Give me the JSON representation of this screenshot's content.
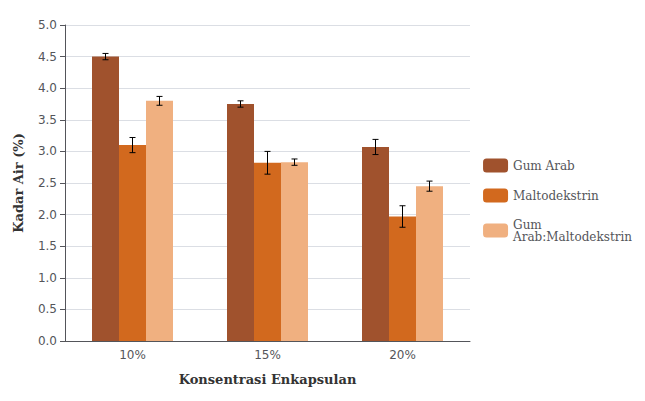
{
  "chart_data": {
    "type": "bar",
    "categories": [
      "10%",
      "15%",
      "20%"
    ],
    "series": [
      {
        "name": "Gum Arab",
        "color": "#a0522d",
        "values": [
          4.5,
          3.75,
          3.07
        ],
        "errors": [
          0.05,
          0.05,
          0.12
        ]
      },
      {
        "name": "Maltodekstrin",
        "color": "#d2691e",
        "values": [
          3.1,
          2.82,
          1.97
        ],
        "errors": [
          0.12,
          0.18,
          0.17
        ]
      },
      {
        "name": "Gum\nArab:Maltodekstrin",
        "color": "#f0b080",
        "values": [
          3.8,
          2.83,
          2.45
        ],
        "errors": [
          0.07,
          0.05,
          0.08
        ]
      }
    ],
    "xlabel": "Konsentrasi Enkapsulan",
    "ylabel": "Kadar Air (%)",
    "ylim": [
      0.0,
      5.0
    ],
    "yticks": [
      {
        "value": 0,
        "label": "0.0"
      },
      0.5,
      {
        "value": 1,
        "label": "1.0"
      },
      1.5,
      {
        "value": 2,
        "label": "2.0"
      },
      2.5,
      {
        "value": 3,
        "label": "3.0"
      },
      3.5,
      {
        "value": 4,
        "label": "4.0"
      },
      4.5,
      {
        "value": 5,
        "label": "5.0"
      }
    ],
    "grid": true,
    "legend": "right"
  }
}
